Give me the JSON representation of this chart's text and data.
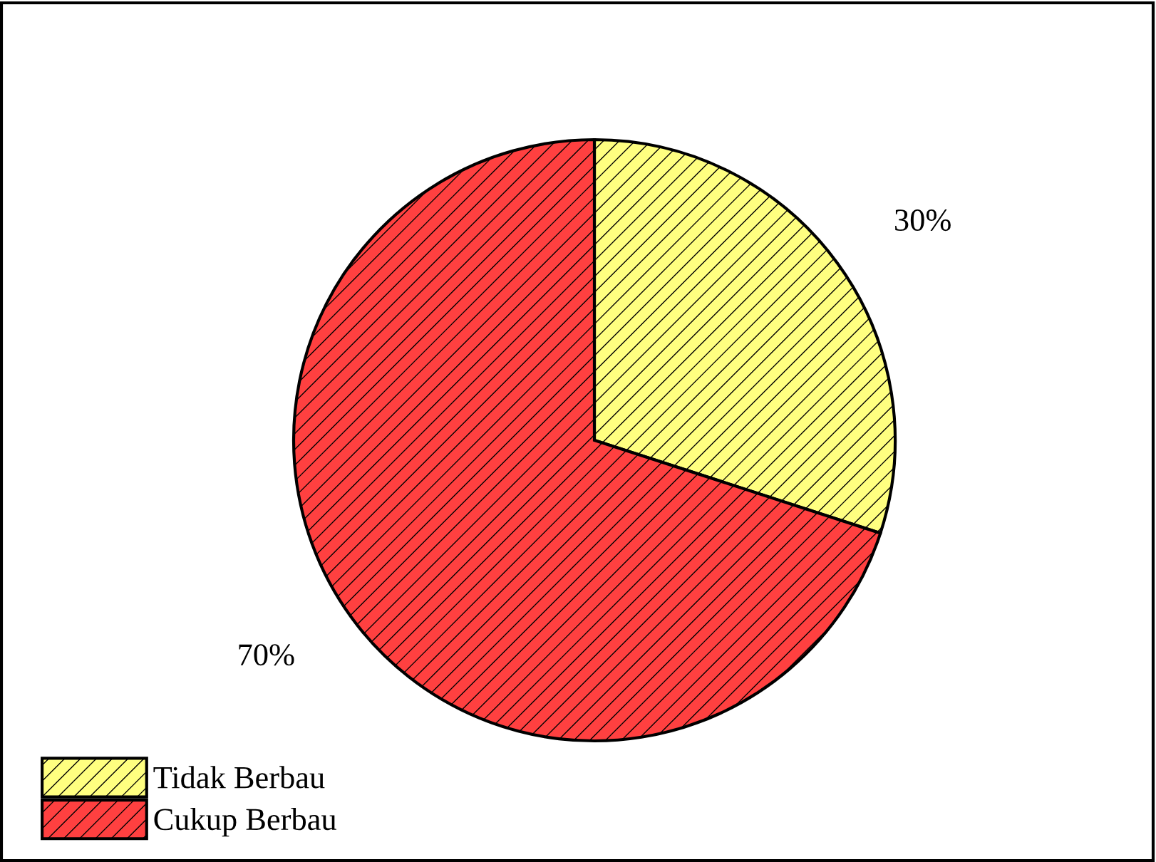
{
  "chart_data": {
    "type": "pie",
    "categories": [
      "Tidak Berbau",
      "Cukup Berbau"
    ],
    "values": [
      30,
      70
    ],
    "colors": [
      "#ffff80",
      "#ff4040"
    ],
    "value_labels": [
      "30%",
      "70%"
    ],
    "legend": "bottom left"
  }
}
